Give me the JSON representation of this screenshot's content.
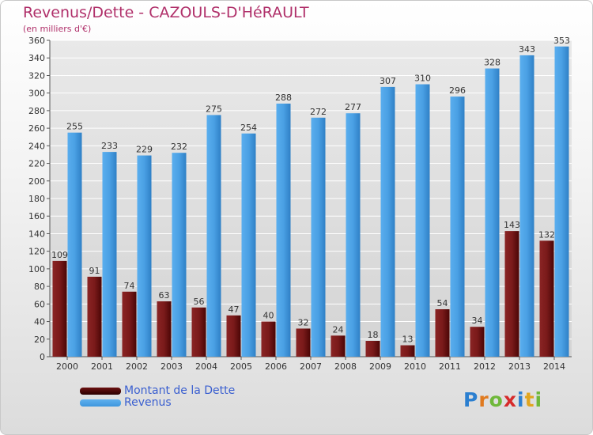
{
  "title": "Revenus/Dette - CAZOULS-D'HéRAULT",
  "subtitle": "(en milliers d'€)",
  "colors": {
    "dette": "#6b1010",
    "revenus": "#3f97dd",
    "title": "#b0306a",
    "legend_text": "#3a5fd0"
  },
  "legend": {
    "items": [
      {
        "label": "Montant de la Dette",
        "color": "#6b1010"
      },
      {
        "label": "Revenus",
        "color": "#3f97dd"
      }
    ]
  },
  "logo": {
    "letters": [
      "P",
      "r",
      "o",
      "x",
      "i",
      "t",
      "i"
    ],
    "colors": [
      "#2b7fd0",
      "#e07a1f",
      "#6fb83a",
      "#d62b2b",
      "#2b7fd0",
      "#e0a51f",
      "#6fb83a"
    ]
  },
  "chart_data": {
    "type": "bar",
    "categories": [
      "2000",
      "2001",
      "2002",
      "2003",
      "2004",
      "2005",
      "2006",
      "2007",
      "2008",
      "2009",
      "2010",
      "2011",
      "2012",
      "2013",
      "2014"
    ],
    "series": [
      {
        "name": "Montant de la Dette",
        "values": [
          109,
          91,
          74,
          63,
          56,
          47,
          40,
          32,
          24,
          18,
          13,
          54,
          34,
          143,
          132
        ]
      },
      {
        "name": "Revenus",
        "values": [
          255,
          233,
          229,
          232,
          275,
          254,
          288,
          272,
          277,
          307,
          310,
          296,
          328,
          343,
          353
        ]
      }
    ],
    "ylim": [
      0,
      360
    ],
    "yticks": [
      0,
      20,
      40,
      60,
      80,
      100,
      120,
      140,
      160,
      180,
      200,
      220,
      240,
      260,
      280,
      300,
      320,
      340,
      360
    ],
    "grid": true,
    "legend_position": "bottom-left"
  }
}
